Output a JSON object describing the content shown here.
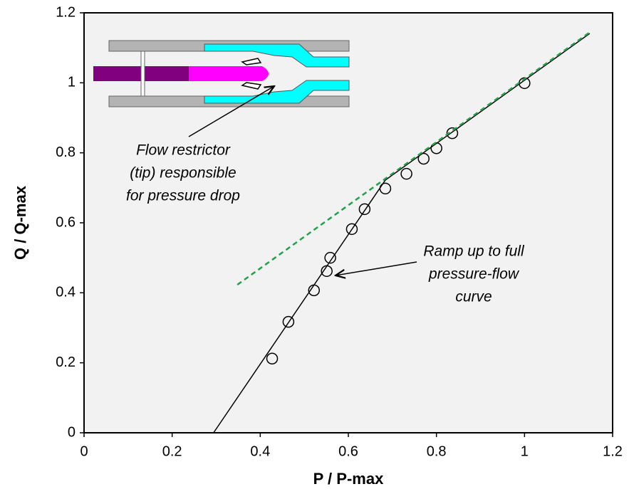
{
  "chart_data": {
    "type": "scatter",
    "xlabel": "P / P-max",
    "ylabel": "Q / Q-max",
    "xlim": [
      0,
      1.2
    ],
    "ylim": [
      0,
      1.2
    ],
    "xticks": [
      0,
      0.2,
      0.4,
      0.6,
      0.8,
      1,
      1.2
    ],
    "yticks": [
      0,
      0.2,
      0.4,
      0.6,
      0.8,
      1,
      1.2
    ],
    "series": [
      {
        "color": "#000000",
        "marker": "circle",
        "x": [
          0.427,
          0.464,
          0.522,
          0.551,
          0.559,
          0.608,
          0.637,
          0.684,
          0.732,
          0.771,
          0.8,
          0.836,
          1.0
        ],
        "values": [
          0.212,
          0.317,
          0.407,
          0.462,
          0.5,
          0.582,
          0.639,
          0.698,
          0.74,
          0.783,
          0.813,
          0.856,
          0.999
        ]
      },
      {
        "color": "#000000",
        "style": "solid",
        "x": [
          0.294,
          0.684,
          1.148
        ],
        "values": [
          0,
          0.722,
          1.141
        ]
      },
      {
        "color": "#22a04b",
        "style": "dashed",
        "x": [
          0.348,
          1.151
        ],
        "values": [
          0.423,
          1.147
        ]
      }
    ],
    "annotations": [
      {
        "lines": [
          "Flow restrictor",
          "(tip) responsible",
          "for pressure drop"
        ]
      },
      {
        "lines": [
          "Ramp up to full",
          "pressure-flow",
          "curve"
        ]
      }
    ]
  }
}
